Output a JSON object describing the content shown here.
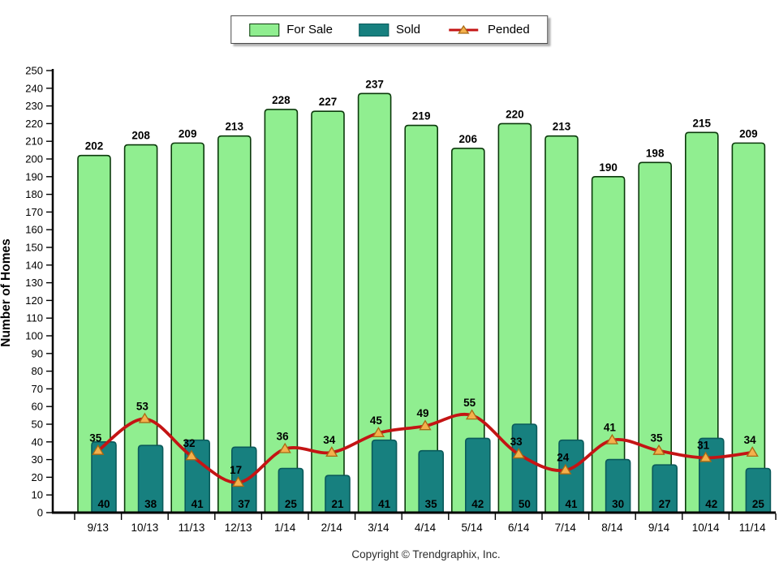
{
  "legend": {
    "items": [
      {
        "label": "For Sale",
        "icon": "green-bar-swatch"
      },
      {
        "label": "Sold",
        "icon": "teal-bar-swatch"
      },
      {
        "label": "Pended",
        "icon": "red-line-triangle-marker"
      }
    ]
  },
  "chart_data": {
    "type": "bar+line",
    "categories": [
      "9/13",
      "10/13",
      "11/13",
      "12/13",
      "1/14",
      "2/14",
      "3/14",
      "4/14",
      "5/14",
      "6/14",
      "7/14",
      "8/14",
      "9/14",
      "10/14",
      "11/14"
    ],
    "series": [
      {
        "name": "For Sale",
        "type": "bar",
        "fill": "#90EE90",
        "border": "#0B3A0B",
        "values": [
          202,
          208,
          209,
          213,
          228,
          227,
          237,
          219,
          206,
          220,
          213,
          190,
          198,
          215,
          209
        ]
      },
      {
        "name": "Sold",
        "type": "bar",
        "fill": "#17807F",
        "border": "#0A5A5B",
        "values": [
          40,
          38,
          41,
          37,
          25,
          21,
          41,
          35,
          42,
          50,
          41,
          30,
          27,
          42,
          25
        ]
      },
      {
        "name": "Pended",
        "type": "line",
        "color": "#C41414",
        "marker": "triangle",
        "marker_fill": "#F4B04C",
        "marker_stroke": "#A86A14",
        "values": [
          35,
          53,
          32,
          17,
          36,
          34,
          45,
          49,
          55,
          33,
          24,
          41,
          35,
          31,
          34
        ]
      }
    ],
    "title": "",
    "xlabel": "",
    "ylabel": "Number of Homes",
    "ylim": [
      0,
      250
    ],
    "ytick_step": 10,
    "grid": false,
    "legend_position": "top-center",
    "axis_color": "#000000"
  },
  "footer": {
    "copyright": "Copyright © Trendgraphix, Inc."
  }
}
